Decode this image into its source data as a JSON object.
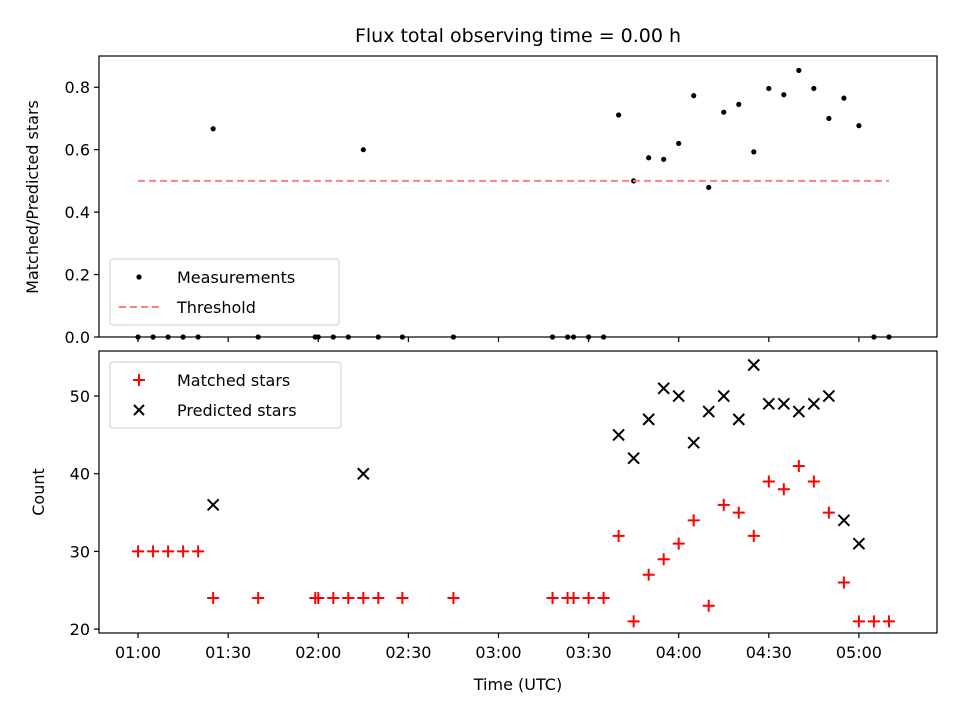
{
  "chart_data": [
    {
      "type": "scatter",
      "title": "Flux total observing time = 0.00 h",
      "ylabel": "Matched/Predicted stars",
      "xlabel": "",
      "xlim": [
        "00:47",
        "05:26"
      ],
      "ylim": [
        0,
        0.9
      ],
      "yticks": [
        0.0,
        0.2,
        0.4,
        0.6,
        0.8
      ],
      "ytick_labels": [
        "0.0",
        "0.2",
        "0.4",
        "0.6",
        "0.8"
      ],
      "legend_position": "lower-left",
      "grid": false,
      "series": [
        {
          "name": "Measurements",
          "marker": "dot",
          "color": "#000000",
          "x": [
            "01:00",
            "01:05",
            "01:10",
            "01:15",
            "01:20",
            "01:25",
            "01:40",
            "01:59",
            "02:00",
            "02:05",
            "02:10",
            "02:15",
            "02:20",
            "02:28",
            "02:45",
            "03:18",
            "03:23",
            "03:25",
            "03:30",
            "03:35",
            "03:40",
            "03:45",
            "03:50",
            "03:55",
            "04:00",
            "04:05",
            "04:10",
            "04:15",
            "04:20",
            "04:25",
            "04:30",
            "04:35",
            "04:40",
            "04:45",
            "04:50",
            "04:55",
            "05:00",
            "05:05",
            "05:10"
          ],
          "y": [
            0,
            0,
            0,
            0,
            0,
            0.667,
            0,
            0,
            0,
            0,
            0,
            0.6,
            0,
            0,
            0,
            0,
            0,
            0,
            0,
            0,
            0.711,
            0.5,
            0.574,
            0.569,
            0.62,
            0.773,
            0.479,
            0.72,
            0.745,
            0.593,
            0.796,
            0.776,
            0.854,
            0.796,
            0.7,
            0.765,
            0.677,
            0,
            0
          ]
        },
        {
          "name": "Threshold",
          "style": "dashed",
          "color": "#ff7f7f",
          "x": [
            "01:00",
            "05:10"
          ],
          "y": [
            0.5,
            0.5
          ]
        }
      ]
    },
    {
      "type": "scatter",
      "title": "",
      "ylabel": "Count",
      "xlabel": "Time (UTC)",
      "xlim": [
        "00:47",
        "05:26"
      ],
      "ylim": [
        19.5,
        55.8
      ],
      "yticks": [
        20,
        30,
        40,
        50
      ],
      "ytick_labels": [
        "20",
        "30",
        "40",
        "50"
      ],
      "xticks": [
        "01:00",
        "01:30",
        "02:00",
        "02:30",
        "03:00",
        "03:30",
        "04:00",
        "04:30",
        "05:00"
      ],
      "xtick_labels": [
        "01:00",
        "01:30",
        "02:00",
        "02:30",
        "03:00",
        "03:30",
        "04:00",
        "04:30",
        "05:00"
      ],
      "legend_position": "upper-left",
      "grid": false,
      "series": [
        {
          "name": "Matched stars",
          "marker": "plus",
          "color": "#ff0000",
          "x": [
            "01:00",
            "01:05",
            "01:10",
            "01:15",
            "01:20",
            "01:25",
            "01:40",
            "01:59",
            "02:00",
            "02:05",
            "02:10",
            "02:15",
            "02:20",
            "02:28",
            "02:45",
            "03:18",
            "03:23",
            "03:25",
            "03:30",
            "03:35",
            "03:40",
            "03:45",
            "03:50",
            "03:55",
            "04:00",
            "04:05",
            "04:10",
            "04:15",
            "04:20",
            "04:25",
            "04:30",
            "04:35",
            "04:40",
            "04:45",
            "04:50",
            "04:55",
            "05:00",
            "05:05",
            "05:10"
          ],
          "y": [
            30,
            30,
            30,
            30,
            30,
            24,
            24,
            24,
            24,
            24,
            24,
            24,
            24,
            24,
            24,
            24,
            24,
            24,
            24,
            24,
            32,
            21,
            27,
            29,
            31,
            34,
            23,
            36,
            35,
            32,
            39,
            38,
            41,
            39,
            35,
            26,
            21,
            21,
            21
          ]
        },
        {
          "name": "Predicted stars",
          "marker": "x",
          "color": "#000000",
          "x": [
            "01:25",
            "02:15",
            "03:40",
            "03:45",
            "03:50",
            "03:55",
            "04:00",
            "04:05",
            "04:10",
            "04:15",
            "04:20",
            "04:25",
            "04:30",
            "04:35",
            "04:40",
            "04:45",
            "04:50",
            "04:55",
            "05:00"
          ],
          "y": [
            36,
            40,
            45,
            42,
            47,
            51,
            50,
            44,
            48,
            50,
            47,
            54,
            49,
            49,
            48,
            49,
            50,
            34,
            31
          ]
        }
      ]
    }
  ]
}
